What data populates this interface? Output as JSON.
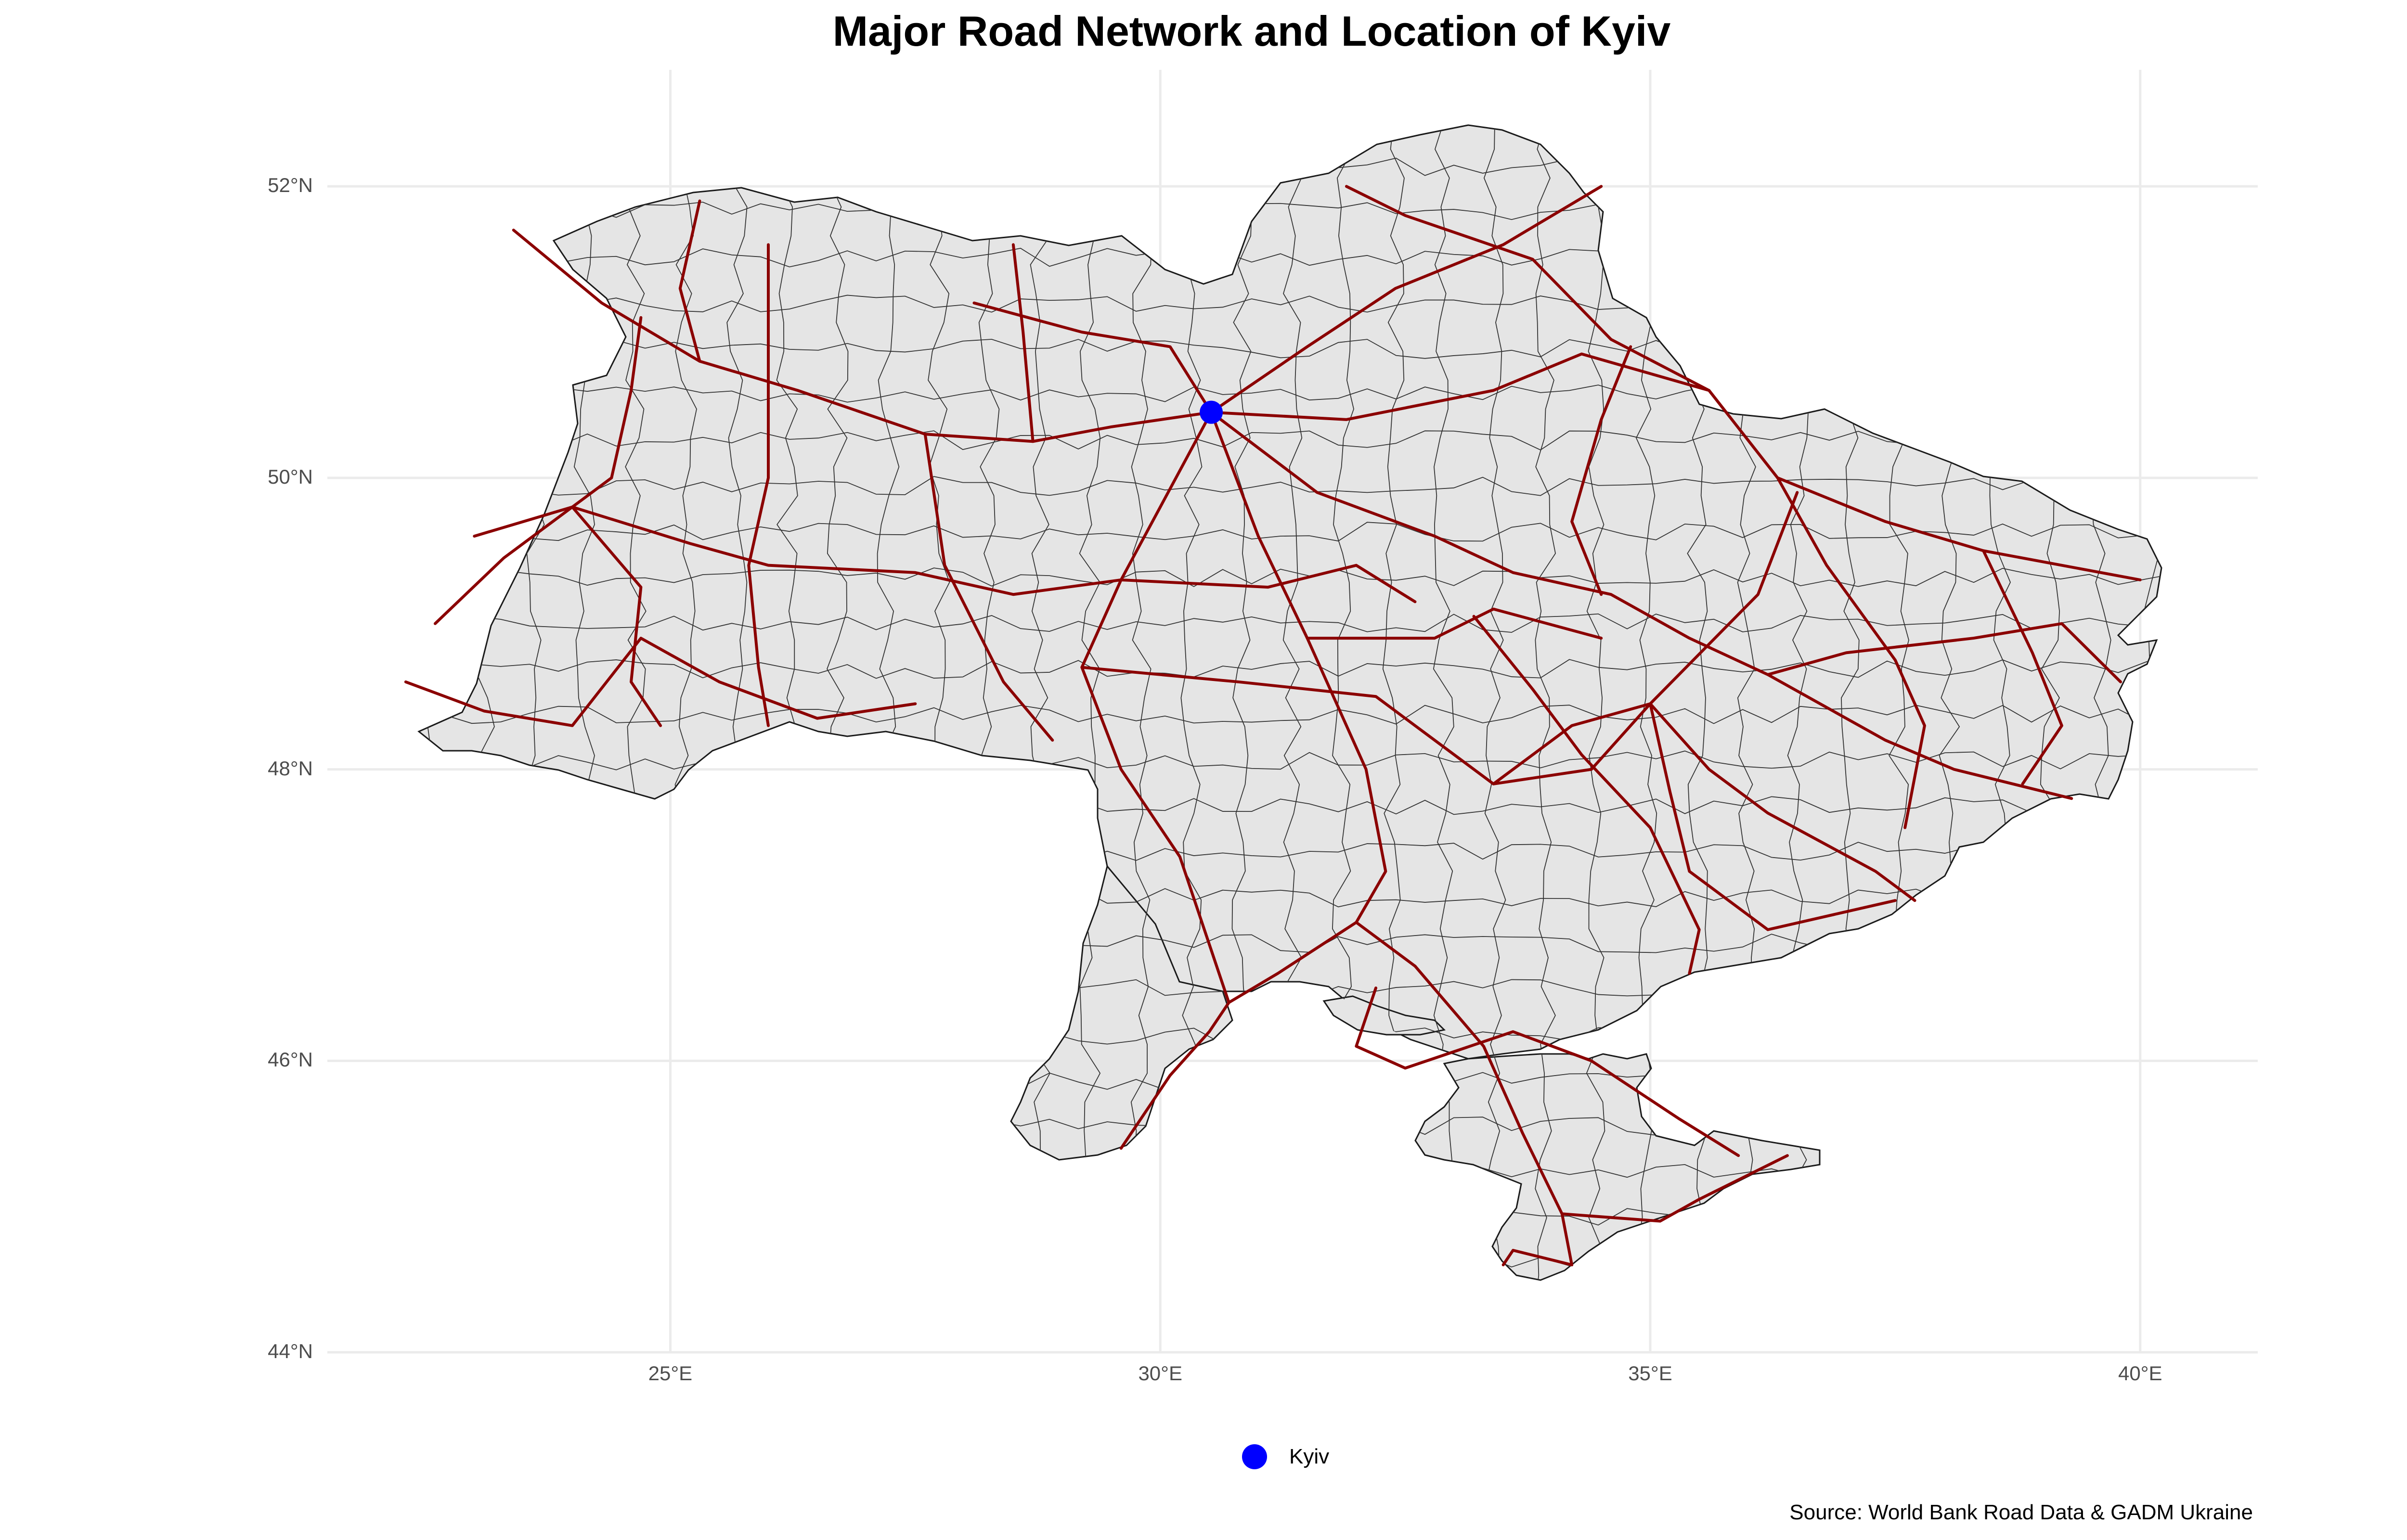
{
  "title": "Major Road Network and Location of Kyiv",
  "y_ticks": [
    "52°N",
    "50°N",
    "48°N",
    "46°N",
    "44°N"
  ],
  "x_ticks": [
    "25°E",
    "30°E",
    "35°E",
    "40°E"
  ],
  "legend": {
    "label": "Kyiv",
    "color": "#0000ff"
  },
  "caption": "Source: World Bank Road Data & GADM Ukraine",
  "colors": {
    "land": "#e5e5e5",
    "border": "#1a1a1a",
    "road": "#8b0000",
    "grid": "#ebebeb",
    "marker": "#0000ff"
  },
  "chart_data": {
    "type": "map",
    "title": "Major Road Network and Location of Kyiv",
    "xlabel": "",
    "ylabel": "",
    "xlim": [
      21.5,
      41.2
    ],
    "ylim": [
      44,
      52.8
    ],
    "x_ticks": [
      25,
      30,
      35,
      40
    ],
    "y_ticks": [
      52,
      50,
      48,
      46,
      44
    ],
    "points": [
      {
        "name": "Kyiv",
        "lon": 30.52,
        "lat": 50.45
      }
    ],
    "roads": [
      [
        [
          23.4,
          51.7
        ],
        [
          24.3,
          51.2
        ],
        [
          25.3,
          50.8
        ],
        [
          26.3,
          50.6
        ],
        [
          27.6,
          50.3
        ],
        [
          28.7,
          50.25
        ],
        [
          29.5,
          50.35
        ],
        [
          30.52,
          50.45
        ]
      ],
      [
        [
          30.52,
          50.45
        ],
        [
          31.6,
          49.9
        ],
        [
          32.8,
          49.6
        ],
        [
          33.6,
          49.35
        ],
        [
          34.6,
          49.2
        ],
        [
          35.4,
          48.9
        ],
        [
          36.2,
          48.65
        ],
        [
          37.4,
          48.2
        ],
        [
          38.1,
          48.0
        ],
        [
          39.3,
          47.8
        ]
      ],
      [
        [
          30.52,
          50.45
        ],
        [
          31.5,
          50.9
        ],
        [
          32.4,
          51.3
        ],
        [
          33.5,
          51.6
        ],
        [
          34.5,
          52.0
        ]
      ],
      [
        [
          30.52,
          50.45
        ],
        [
          31.9,
          50.4
        ],
        [
          33.4,
          50.6
        ],
        [
          34.3,
          50.85
        ],
        [
          35.6,
          50.6
        ],
        [
          36.3,
          50.0
        ],
        [
          37.4,
          49.7
        ],
        [
          38.4,
          49.5
        ],
        [
          40.0,
          49.3
        ]
      ],
      [
        [
          30.52,
          50.45
        ],
        [
          30.0,
          49.8
        ],
        [
          29.6,
          49.3
        ],
        [
          29.2,
          48.7
        ],
        [
          29.6,
          48.0
        ],
        [
          30.2,
          47.4
        ],
        [
          30.6,
          46.6
        ],
        [
          30.7,
          46.4
        ]
      ],
      [
        [
          30.52,
          50.45
        ],
        [
          31.0,
          49.6
        ],
        [
          31.5,
          48.9
        ],
        [
          32.1,
          48.0
        ],
        [
          32.3,
          47.3
        ],
        [
          32.0,
          46.95
        ],
        [
          32.6,
          46.65
        ]
      ],
      [
        [
          32.6,
          46.65
        ],
        [
          33.3,
          46.1
        ],
        [
          33.7,
          45.5
        ],
        [
          34.1,
          44.95
        ],
        [
          34.2,
          44.6
        ]
      ],
      [
        [
          34.1,
          44.95
        ],
        [
          35.1,
          44.9
        ],
        [
          35.5,
          45.05
        ],
        [
          36.4,
          45.35
        ]
      ],
      [
        [
          34.2,
          44.6
        ],
        [
          33.6,
          44.7
        ],
        [
          33.5,
          44.6
        ]
      ],
      [
        [
          33.4,
          47.9
        ],
        [
          34.2,
          48.3
        ],
        [
          35.0,
          48.45
        ],
        [
          35.6,
          48.0
        ],
        [
          36.2,
          47.7
        ],
        [
          37.3,
          47.3
        ],
        [
          37.7,
          47.1
        ]
      ],
      [
        [
          35.0,
          48.45
        ],
        [
          35.2,
          47.85
        ],
        [
          35.4,
          47.3
        ],
        [
          36.2,
          46.9
        ],
        [
          37.5,
          47.1
        ]
      ],
      [
        [
          23.0,
          49.6
        ],
        [
          24.0,
          49.8
        ],
        [
          25.2,
          49.55
        ],
        [
          26.0,
          49.4
        ],
        [
          27.5,
          49.35
        ],
        [
          28.5,
          49.2
        ],
        [
          29.6,
          49.3
        ],
        [
          31.1,
          49.25
        ],
        [
          32.0,
          49.4
        ],
        [
          32.6,
          49.15
        ]
      ],
      [
        [
          22.3,
          48.6
        ],
        [
          23.1,
          48.4
        ],
        [
          24.0,
          48.3
        ],
        [
          24.7,
          48.9
        ],
        [
          25.5,
          48.6
        ],
        [
          26.5,
          48.35
        ],
        [
          27.5,
          48.45
        ]
      ],
      [
        [
          24.0,
          49.8
        ],
        [
          24.7,
          49.25
        ],
        [
          24.6,
          48.6
        ],
        [
          24.9,
          48.3
        ]
      ],
      [
        [
          26.0,
          51.6
        ],
        [
          26.0,
          50.8
        ],
        [
          26.0,
          50.0
        ],
        [
          25.8,
          49.4
        ],
        [
          25.9,
          48.7
        ],
        [
          26.0,
          48.3
        ]
      ],
      [
        [
          24.7,
          51.1
        ],
        [
          24.6,
          50.6
        ],
        [
          24.4,
          50.0
        ],
        [
          24.0,
          49.8
        ],
        [
          23.3,
          49.45
        ],
        [
          22.6,
          49.0
        ]
      ],
      [
        [
          27.6,
          50.3
        ],
        [
          27.8,
          49.4
        ],
        [
          28.4,
          48.6
        ],
        [
          28.9,
          48.2
        ]
      ],
      [
        [
          29.2,
          48.7
        ],
        [
          30.8,
          48.6
        ],
        [
          32.2,
          48.5
        ],
        [
          33.4,
          47.9
        ],
        [
          34.4,
          48.0
        ],
        [
          35.0,
          48.45
        ],
        [
          36.1,
          49.2
        ],
        [
          36.5,
          49.9
        ]
      ],
      [
        [
          31.5,
          48.9
        ],
        [
          32.8,
          48.9
        ],
        [
          33.4,
          49.1
        ],
        [
          34.5,
          48.9
        ]
      ],
      [
        [
          36.3,
          50.0
        ],
        [
          36.8,
          49.4
        ],
        [
          37.5,
          48.75
        ],
        [
          37.8,
          48.3
        ],
        [
          37.6,
          47.6
        ]
      ],
      [
        [
          34.8,
          50.9
        ],
        [
          34.5,
          50.4
        ],
        [
          34.2,
          49.7
        ],
        [
          34.5,
          49.2
        ]
      ],
      [
        [
          36.2,
          48.65
        ],
        [
          37.0,
          48.8
        ],
        [
          38.3,
          48.9
        ],
        [
          39.2,
          49.0
        ],
        [
          39.8,
          48.6
        ]
      ],
      [
        [
          38.4,
          49.5
        ],
        [
          38.9,
          48.8
        ],
        [
          39.2,
          48.3
        ],
        [
          38.8,
          47.9
        ]
      ],
      [
        [
          32.2,
          46.5
        ],
        [
          32.0,
          46.1
        ],
        [
          32.5,
          45.95
        ],
        [
          33.6,
          46.2
        ],
        [
          34.4,
          46.0
        ],
        [
          35.3,
          45.6
        ],
        [
          35.9,
          45.35
        ]
      ],
      [
        [
          29.6,
          45.4
        ],
        [
          30.1,
          45.9
        ],
        [
          30.5,
          46.2
        ],
        [
          30.7,
          46.4
        ],
        [
          31.2,
          46.6
        ],
        [
          32.0,
          46.95
        ]
      ],
      [
        [
          31.9,
          52.0
        ],
        [
          32.5,
          51.8
        ],
        [
          33.8,
          51.5
        ],
        [
          34.6,
          50.95
        ],
        [
          35.6,
          50.6
        ]
      ],
      [
        [
          28.1,
          51.2
        ],
        [
          29.2,
          51.0
        ],
        [
          30.1,
          50.9
        ],
        [
          30.52,
          50.45
        ]
      ],
      [
        [
          25.3,
          50.8
        ],
        [
          25.1,
          51.3
        ],
        [
          25.3,
          51.9
        ]
      ],
      [
        [
          28.7,
          50.25
        ],
        [
          28.6,
          51.0
        ],
        [
          28.5,
          51.6
        ]
      ],
      [
        [
          33.2,
          49.05
        ],
        [
          33.8,
          48.55
        ],
        [
          34.3,
          48.1
        ],
        [
          35.0,
          47.6
        ],
        [
          35.5,
          46.9
        ],
        [
          35.4,
          46.6
        ]
      ]
    ]
  }
}
